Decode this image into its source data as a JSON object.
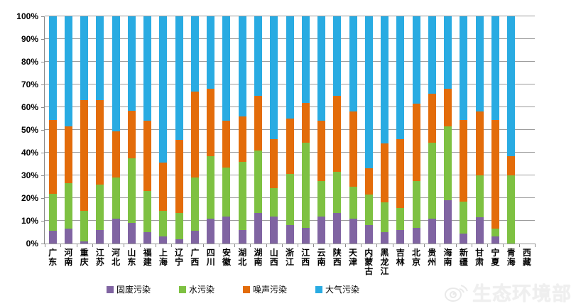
{
  "chart_data": {
    "type": "bar",
    "stacked": true,
    "percent_stacked": true,
    "title": "",
    "xlabel": "",
    "ylabel": "",
    "ylim": [
      0,
      100
    ],
    "ytick_step": 10,
    "yticks": [
      "0%",
      "10%",
      "20%",
      "30%",
      "40%",
      "50%",
      "60%",
      "70%",
      "80%",
      "90%",
      "100%"
    ],
    "grid": true,
    "legend_position": "bottom",
    "categories": [
      "广东",
      "河南",
      "重庆",
      "江苏",
      "河北",
      "山东",
      "福建",
      "上海",
      "辽宁",
      "广西",
      "四川",
      "安徽",
      "湖北",
      "湖南",
      "山西",
      "浙江",
      "江西",
      "云南",
      "陕西",
      "天津",
      "内蒙古",
      "黑龙江",
      "吉林",
      "北京",
      "贵州",
      "海南",
      "新疆",
      "甘肃",
      "宁夏",
      "青海",
      "西藏"
    ],
    "series": [
      {
        "name": "固废污染",
        "color": "#8064A2",
        "values": [
          5.5,
          6.5,
          1,
          6,
          11,
          9,
          5,
          3,
          2,
          5.5,
          11,
          12,
          6,
          13.5,
          12,
          8,
          7,
          12,
          13.5,
          11,
          8,
          5,
          6,
          7,
          11,
          19,
          4.5,
          11.5,
          3,
          0,
          0
        ]
      },
      {
        "name": "水污染",
        "color": "#7EC142",
        "values": [
          16.5,
          20,
          13.5,
          20,
          18,
          28.5,
          18,
          11.5,
          11.5,
          23.5,
          27.5,
          21.5,
          30,
          27.5,
          12.5,
          22.5,
          37.5,
          15.5,
          18,
          14,
          13.5,
          13,
          9.5,
          20.5,
          33.5,
          32.5,
          14,
          18.5,
          3.5,
          30,
          0
        ]
      },
      {
        "name": "噪声污染",
        "color": "#E36C0A",
        "values": [
          32.5,
          25,
          48.5,
          37,
          20.5,
          21,
          31,
          21,
          32,
          38,
          29.5,
          20.5,
          20,
          24,
          21.5,
          24.5,
          17.5,
          26.5,
          33.5,
          33,
          11.5,
          26,
          30.5,
          34,
          21.5,
          16.5,
          36,
          28,
          48,
          8.5,
          0
        ]
      },
      {
        "name": "大气污染",
        "color": "#29ABE2",
        "values": [
          45.5,
          48.5,
          37,
          37,
          50.5,
          41.5,
          46,
          64.5,
          54.5,
          33,
          32,
          46,
          44,
          35,
          54,
          45,
          38,
          46,
          35,
          42,
          67,
          56,
          54,
          38.5,
          34,
          32,
          45.5,
          42,
          45.5,
          61.5,
          0
        ]
      }
    ]
  },
  "watermark": {
    "text": "生态环境部",
    "icon": "weibo-icon"
  }
}
